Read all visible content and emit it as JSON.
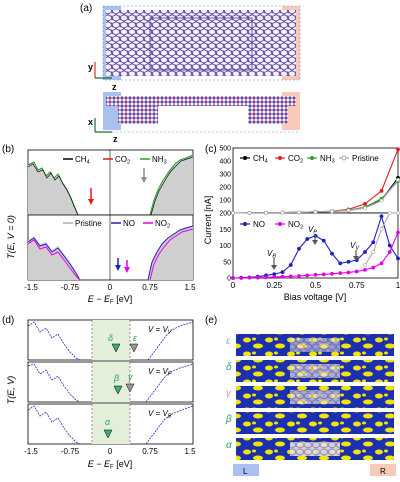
{
  "panels": {
    "a": {
      "label": "(a)",
      "axis_y": "y",
      "axis_z": "z",
      "axis_x": "x",
      "axis_z2": "z"
    },
    "b": {
      "label": "(b)",
      "ylabel": "T(E, V = 0)",
      "xlabel": "E − E",
      "xlabel_sub": "F",
      "xlabel_unit": " [eV]",
      "xticks": [
        "-1.5",
        "-0.75",
        "0",
        "0.75",
        "1.5"
      ],
      "legend_top": [
        "CH",
        "CO",
        "NH"
      ],
      "legend_top_sub": [
        "4",
        "2",
        "3"
      ],
      "legend_bottom": [
        "Pristine",
        "NO",
        "NO"
      ],
      "legend_bottom_sub": [
        "",
        "",
        "2"
      ]
    },
    "c": {
      "label": "(c)",
      "ylabel": "Current [nA]",
      "xlabel": "Bias voltage [V]",
      "legend_top": [
        "CH",
        "CO",
        "NH",
        "Pristine"
      ],
      "legend_top_sub": [
        "4",
        "2",
        "3",
        ""
      ],
      "legend_bottom": [
        "NO",
        "NO"
      ],
      "legend_bottom_sub": [
        "",
        "2"
      ],
      "annotations": [
        "V",
        "V",
        "V"
      ],
      "annotations_sub": [
        "B",
        "P",
        "V"
      ]
    },
    "d": {
      "label": "(d)",
      "ylabel": "T(E, V)",
      "xlabel": "E − E",
      "xlabel_sub": "F",
      "xlabel_unit": " [eV]",
      "xticks": [
        "-1.5",
        "-0.75",
        "0",
        "0.75",
        "1.5"
      ],
      "rows": [
        {
          "v": "V = V",
          "sub": "V",
          "greek": "δ",
          "greek2": "ε"
        },
        {
          "v": "V = V",
          "sub": "P",
          "greek": "β",
          "greek2": "γ"
        },
        {
          "v": "V = V",
          "sub": "B",
          "greek": "α",
          "greek2": ""
        }
      ]
    },
    "e": {
      "label": "(e)",
      "greek": [
        "ε",
        "δ",
        "γ",
        "β",
        "α"
      ],
      "lead_left": "L",
      "lead_right": "R"
    }
  },
  "chart_data": [
    {
      "type": "line",
      "title": "",
      "xlabel": "Bias voltage [V]",
      "ylabel": "Current [nA]",
      "ylim": [
        0,
        500
      ],
      "xlim": [
        0,
        1
      ],
      "yticks": [
        "0",
        "100",
        "200",
        "300",
        "400",
        "500"
      ],
      "xticks": [
        "0",
        "0.25",
        "0.5",
        "0.75",
        "1"
      ],
      "series": [
        {
          "name": "CH4",
          "color": "#000000",
          "x": [
            0,
            0.1,
            0.2,
            0.3,
            0.4,
            0.5,
            0.6,
            0.7,
            0.8,
            0.9,
            1.0
          ],
          "values": [
            0,
            1,
            2,
            3,
            5,
            8,
            12,
            20,
            40,
            100,
            270
          ]
        },
        {
          "name": "CO2",
          "color": "#e41a1c",
          "x": [
            0,
            0.1,
            0.2,
            0.3,
            0.4,
            0.5,
            0.6,
            0.7,
            0.8,
            0.9,
            1.0
          ],
          "values": [
            0,
            1,
            2,
            3,
            5,
            9,
            14,
            28,
            70,
            170,
            490
          ]
        },
        {
          "name": "NH3",
          "color": "#2ca02c",
          "x": [
            0,
            0.1,
            0.2,
            0.3,
            0.4,
            0.5,
            0.6,
            0.7,
            0.8,
            0.9,
            1.0
          ],
          "values": [
            0,
            1,
            2,
            3,
            5,
            8,
            12,
            22,
            45,
            110,
            245
          ]
        },
        {
          "name": "Pristine",
          "color": "#aaaaaa",
          "x": [
            0,
            0.1,
            0.2,
            0.3,
            0.4,
            0.5,
            0.6,
            0.7,
            0.8,
            0.9,
            1.0
          ],
          "values": [
            0,
            1,
            2,
            3,
            5,
            8,
            12,
            20,
            38,
            95,
            255
          ]
        }
      ]
    },
    {
      "type": "line",
      "title": "",
      "xlabel": "Bias voltage [V]",
      "ylabel": "Current [nA]",
      "ylim": [
        0,
        200
      ],
      "xlim": [
        0,
        1
      ],
      "yticks": [
        "0",
        "50",
        "100",
        "150",
        "200"
      ],
      "xticks": [
        "0",
        "0.25",
        "0.5",
        "0.75",
        "1"
      ],
      "series": [
        {
          "name": "NO",
          "color": "#1f1fbf",
          "x": [
            0,
            0.05,
            0.1,
            0.15,
            0.2,
            0.25,
            0.3,
            0.35,
            0.4,
            0.45,
            0.5,
            0.55,
            0.6,
            0.65,
            0.7,
            0.75,
            0.8,
            0.85,
            0.9,
            0.95,
            1.0
          ],
          "values": [
            0,
            1,
            2,
            4,
            8,
            12,
            18,
            40,
            90,
            120,
            130,
            115,
            75,
            45,
            50,
            55,
            80,
            110,
            190,
            100,
            60
          ]
        },
        {
          "name": "NO2",
          "color": "#e600e6",
          "x": [
            0,
            0.05,
            0.1,
            0.15,
            0.2,
            0.25,
            0.3,
            0.35,
            0.4,
            0.45,
            0.5,
            0.55,
            0.6,
            0.65,
            0.7,
            0.75,
            0.8,
            0.85,
            0.9,
            0.95,
            1.0
          ],
          "values": [
            0,
            0,
            1,
            1,
            2,
            3,
            4,
            5,
            6,
            8,
            10,
            11,
            13,
            15,
            17,
            20,
            25,
            32,
            45,
            80,
            140
          ]
        },
        {
          "name": "Pristine",
          "color": "#aaaaaa",
          "x": [
            0.8,
            0.85,
            0.9,
            0.95,
            1.0
          ],
          "values": [
            40,
            80,
            150,
            200,
            200
          ]
        }
      ]
    }
  ]
}
